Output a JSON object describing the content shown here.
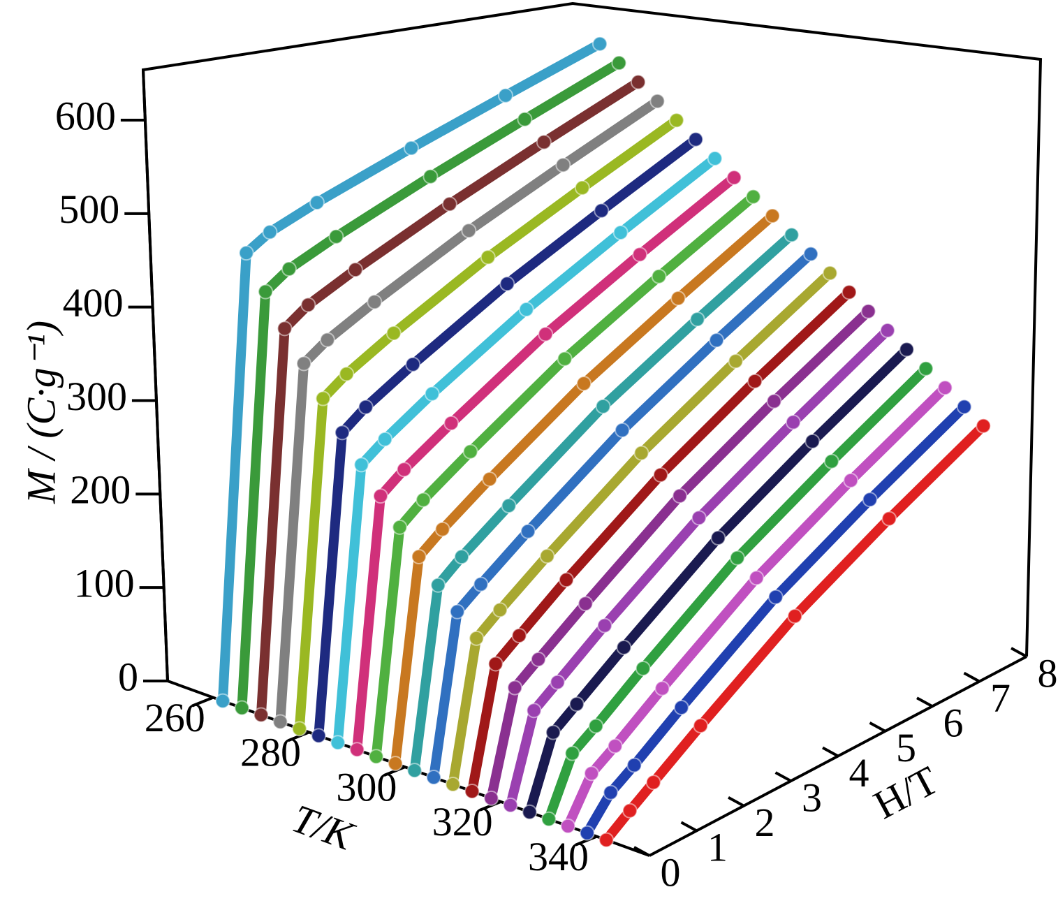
{
  "chart_data": {
    "type": "line3d",
    "y_label": "M / (C·g⁻¹)",
    "t_label": "T/K",
    "x_label": "H/T",
    "x": [
      0,
      0.5,
      1,
      2,
      4,
      6,
      8
    ],
    "xlim": [
      0,
      8
    ],
    "xticks": [
      0,
      1,
      2,
      3,
      4,
      5,
      6,
      7,
      8
    ],
    "tlim": [
      250.5,
      351
    ],
    "tticks": [
      260,
      280,
      300,
      320,
      340
    ],
    "ylim": [
      0,
      650
    ],
    "yticks": [
      0,
      100,
      200,
      300,
      400,
      500,
      600
    ],
    "series": [
      {
        "t": 262,
        "color": "#3aa0c8",
        "values": [
          0,
          466,
          475,
          480,
          485,
          488,
          490
        ]
      },
      {
        "t": 266,
        "color": "#3a9a3a",
        "values": [
          0,
          432,
          443,
          451,
          462,
          470,
          477
        ]
      },
      {
        "t": 270,
        "color": "#7a3030",
        "values": [
          0,
          400,
          412,
          423,
          440,
          453,
          464
        ]
      },
      {
        "t": 274,
        "color": "#808080",
        "values": [
          0,
          370,
          382,
          396,
          419,
          436,
          451
        ]
      },
      {
        "t": 278,
        "color": "#9ab822",
        "values": [
          0,
          340,
          353,
          370,
          398,
          419,
          438
        ]
      },
      {
        "t": 282,
        "color": "#1e2a80",
        "values": [
          0,
          311,
          325,
          344,
          377,
          402,
          425
        ]
      },
      {
        "t": 286,
        "color": "#40c0d8",
        "values": [
          0,
          284,
          298,
          320,
          357,
          386,
          412
        ]
      },
      {
        "t": 290,
        "color": "#d0307a",
        "values": [
          0,
          258,
          273,
          296,
          338,
          370,
          399
        ]
      },
      {
        "t": 294,
        "color": "#50b040",
        "values": [
          0,
          232,
          248,
          273,
          319,
          354,
          386
        ]
      },
      {
        "t": 298,
        "color": "#c87820",
        "values": [
          0,
          208,
          224,
          251,
          300,
          338,
          373
        ]
      },
      {
        "t": 302,
        "color": "#30a0a0",
        "values": [
          0,
          185,
          202,
          230,
          283,
          323,
          360
        ]
      },
      {
        "t": 306,
        "color": "#3070c0",
        "values": [
          0,
          164,
          180,
          210,
          265,
          308,
          347
        ]
      },
      {
        "t": 310,
        "color": "#a8a830",
        "values": [
          0,
          143,
          160,
          191,
          248,
          293,
          334
        ]
      },
      {
        "t": 314,
        "color": "#a01818",
        "values": [
          0,
          123,
          140,
          173,
          232,
          279,
          321
        ]
      },
      {
        "t": 318,
        "color": "#8a3090",
        "values": [
          0,
          105,
          122,
          155,
          217,
          265,
          308
        ]
      },
      {
        "t": 322,
        "color": "#9a40b0",
        "values": [
          0,
          88,
          105,
          139,
          201,
          250,
          295
        ]
      },
      {
        "t": 326,
        "color": "#1a1a50",
        "values": [
          0,
          72,
          89,
          123,
          187,
          237,
          282
        ]
      },
      {
        "t": 330,
        "color": "#30a040",
        "values": [
          0,
          57,
          73,
          108,
          173,
          223,
          269
        ]
      },
      {
        "t": 334,
        "color": "#c050c0",
        "values": [
          0,
          43,
          59,
          94,
          159,
          210,
          256
        ]
      },
      {
        "t": 338,
        "color": "#2040b0",
        "values": [
          0,
          30,
          46,
          81,
          146,
          197,
          243
        ]
      },
      {
        "t": 342,
        "color": "#e02020",
        "values": [
          0,
          18,
          35,
          69,
          133,
          184,
          230
        ]
      }
    ]
  }
}
